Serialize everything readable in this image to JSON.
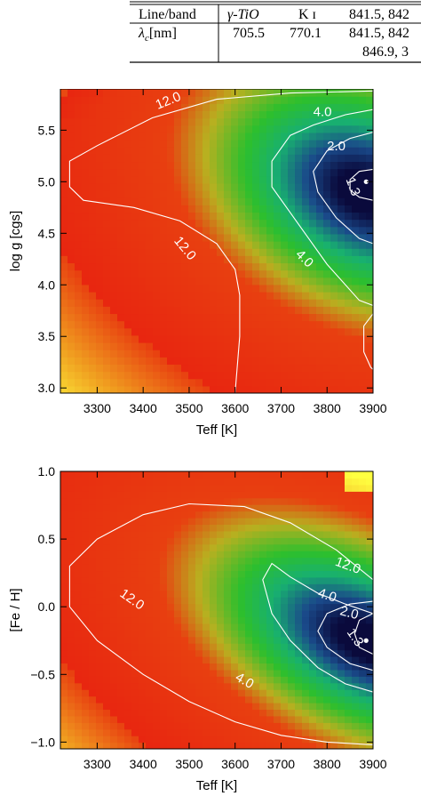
{
  "table": {
    "headers": [
      "Line/band",
      "γ-TiO",
      "K ɪ",
      "841.5, 842"
    ],
    "row_label": "λ",
    "row_label_sub": "c",
    "row_label_unit": "[nm]",
    "values": [
      "705.5",
      "770.1",
      "841.5, 842"
    ],
    "values_line2": "846.9, 3"
  },
  "chart_data": [
    {
      "type": "heatmap",
      "title": "",
      "xlabel": "Teff [K]",
      "ylabel": "log  g  [cgs]",
      "xlim": [
        3220,
        3900
      ],
      "ylim": [
        2.95,
        5.9
      ],
      "x_ticks": [
        "3300",
        "3400",
        "3500",
        "3600",
        "3700",
        "3800",
        "3900"
      ],
      "y_ticks": [
        "3.0",
        "3.5",
        "4.0",
        "4.5",
        "5.0",
        "5.5"
      ],
      "colorscale": [
        "#0a0a3c",
        "#1a4a8a",
        "#18b070",
        "#2dbf2d",
        "#b8b020",
        "#e84010",
        "#e82010",
        "#ffff40"
      ],
      "contour_labels": [
        "12.0",
        "4.0",
        "2.0",
        "1.3",
        "12.0",
        "4.0"
      ],
      "contours": [
        {
          "level": "12.0",
          "path": [
            [
              3900,
              5.88
            ],
            [
              3720,
              5.86
            ],
            [
              3560,
              5.8
            ],
            [
              3420,
              5.62
            ],
            [
              3300,
              5.35
            ],
            [
              3240,
              5.2
            ],
            [
              3240,
              4.95
            ],
            [
              3270,
              4.82
            ],
            [
              3380,
              4.75
            ],
            [
              3480,
              4.62
            ],
            [
              3560,
              4.4
            ],
            [
              3600,
              4.15
            ],
            [
              3610,
              3.9
            ],
            [
              3610,
              3.5
            ],
            [
              3600,
              2.95
            ]
          ]
        },
        {
          "level": "4.0",
          "path": [
            [
              3900,
              5.7
            ],
            [
              3840,
              5.65
            ],
            [
              3770,
              5.55
            ],
            [
              3720,
              5.45
            ],
            [
              3680,
              5.2
            ],
            [
              3680,
              4.95
            ],
            [
              3720,
              4.7
            ],
            [
              3760,
              4.45
            ],
            [
              3800,
              4.2
            ],
            [
              3840,
              4.0
            ],
            [
              3870,
              3.85
            ],
            [
              3900,
              3.8
            ]
          ]
        },
        {
          "level": "2.0",
          "path": [
            [
              3900,
              5.48
            ],
            [
              3850,
              5.42
            ],
            [
              3800,
              5.3
            ],
            [
              3770,
              5.1
            ],
            [
              3780,
              4.9
            ],
            [
              3820,
              4.65
            ],
            [
              3870,
              4.45
            ],
            [
              3900,
              4.4
            ]
          ]
        },
        {
          "level": "1.3",
          "path": [
            [
              3900,
              5.12
            ],
            [
              3870,
              5.1
            ],
            [
              3850,
              5.02
            ],
            [
              3850,
              4.92
            ],
            [
              3870,
              4.85
            ],
            [
              3900,
              4.82
            ]
          ]
        },
        {
          "level": "",
          "path": [
            [
              3900,
              3.72
            ],
            [
              3880,
              3.6
            ],
            [
              3880,
              3.35
            ],
            [
              3895,
              3.2
            ],
            [
              3900,
              3.18
            ]
          ]
        }
      ],
      "points": [
        {
          "x": 3885,
          "y": 5.0
        }
      ]
    },
    {
      "type": "heatmap",
      "title": "",
      "xlabel": "Teff [K]",
      "ylabel": "[Fe / H]",
      "xlim": [
        3220,
        3900
      ],
      "ylim": [
        -1.05,
        1.0
      ],
      "x_ticks": [
        "3300",
        "3400",
        "3500",
        "3600",
        "3700",
        "3800",
        "3900"
      ],
      "y_ticks": [
        "−1.0",
        "−0.5",
        "0.0",
        "0.5",
        "1.0"
      ],
      "colorscale": [
        "#0a0a3c",
        "#1a4a8a",
        "#18b070",
        "#2dbf2d",
        "#b8b020",
        "#e84010",
        "#e82010",
        "#ffff40"
      ],
      "contour_labels": [
        "12.0",
        "12.0",
        "4.0",
        "2.0",
        "1.3",
        "4.0"
      ],
      "contours": [
        {
          "level": "12.0",
          "path": [
            [
              3900,
              0.2
            ],
            [
              3820,
              0.42
            ],
            [
              3720,
              0.62
            ],
            [
              3620,
              0.74
            ],
            [
              3500,
              0.76
            ],
            [
              3400,
              0.68
            ],
            [
              3300,
              0.5
            ],
            [
              3240,
              0.3
            ],
            [
              3240,
              0.0
            ],
            [
              3300,
              -0.25
            ],
            [
              3400,
              -0.5
            ],
            [
              3500,
              -0.7
            ],
            [
              3600,
              -0.85
            ],
            [
              3700,
              -0.95
            ],
            [
              3800,
              -1.0
            ],
            [
              3900,
              -1.02
            ]
          ]
        },
        {
          "level": "4.0",
          "path": [
            [
              3900,
              -0.05
            ],
            [
              3840,
              0.02
            ],
            [
              3780,
              0.1
            ],
            [
              3720,
              0.22
            ],
            [
              3680,
              0.32
            ],
            [
              3660,
              0.2
            ],
            [
              3680,
              -0.05
            ],
            [
              3720,
              -0.25
            ],
            [
              3780,
              -0.45
            ],
            [
              3840,
              -0.57
            ],
            [
              3900,
              -0.63
            ]
          ]
        },
        {
          "level": "2.0",
          "path": [
            [
              3900,
              0.04
            ],
            [
              3850,
              0.02
            ],
            [
              3800,
              -0.05
            ],
            [
              3780,
              -0.18
            ],
            [
              3800,
              -0.3
            ],
            [
              3850,
              -0.42
            ],
            [
              3900,
              -0.47
            ]
          ]
        },
        {
          "level": "1.3",
          "path": [
            [
              3900,
              -0.05
            ],
            [
              3870,
              -0.1
            ],
            [
              3860,
              -0.2
            ],
            [
              3870,
              -0.3
            ],
            [
              3900,
              -0.35
            ]
          ]
        }
      ],
      "points": [
        {
          "x": 3885,
          "y": -0.25
        }
      ]
    }
  ]
}
